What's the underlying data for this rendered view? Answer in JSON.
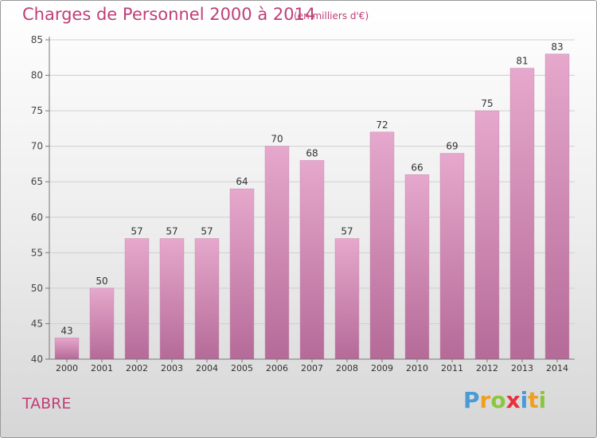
{
  "title": "Charges de Personnel 2000 à 2014",
  "subtitle": "(en milliers d'€)",
  "commune": "TABRE",
  "logo": {
    "letters": [
      "P",
      "r",
      "o",
      "x",
      "i",
      "t",
      "i"
    ],
    "colors": [
      "#4a9ad6",
      "#f0a020",
      "#8cc63f",
      "#e8303c",
      "#4a9ad6",
      "#f0a020",
      "#8cc63f"
    ]
  },
  "chart_data": {
    "type": "bar",
    "categories": [
      "2000",
      "2001",
      "2002",
      "2003",
      "2004",
      "2005",
      "2006",
      "2007",
      "2008",
      "2009",
      "2010",
      "2011",
      "2012",
      "2013",
      "2014"
    ],
    "values": [
      43,
      50,
      57,
      57,
      57,
      64,
      70,
      68,
      57,
      72,
      66,
      69,
      75,
      81,
      83
    ],
    "data_labels": [
      "43",
      "50",
      "57",
      "57",
      "57",
      "64",
      "70",
      "68",
      "57",
      "72",
      "66",
      "69",
      "75",
      "81",
      "83"
    ],
    "ylim": [
      40,
      85
    ],
    "yticks": [
      40,
      45,
      50,
      55,
      60,
      65,
      70,
      75,
      80,
      85
    ],
    "ytick_labels": [
      "40",
      "45",
      "50",
      "55",
      "60",
      "65",
      "70",
      "75",
      "80",
      "85"
    ],
    "grid": true,
    "bar_color": "#d98cb8"
  }
}
